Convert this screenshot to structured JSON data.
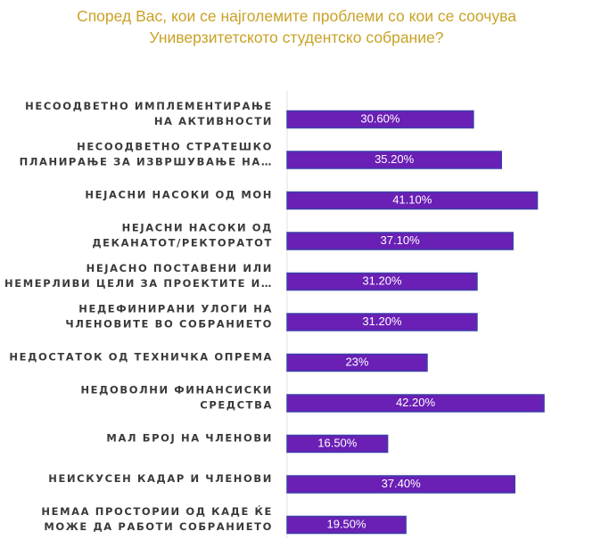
{
  "chart_data": {
    "type": "bar",
    "orientation": "horizontal",
    "title_lines": [
      "Според Вас, кои се најголемите проблеми со кои се соочува",
      "Универзитетското студентско собрание?"
    ],
    "categories": [
      [
        "НЕСООДВЕТНО ИМПЛЕМЕНТИРАЊЕ",
        "НА АКТИВНОСТИ"
      ],
      [
        "НЕСООДВЕТНО СТРАТЕШКО",
        "ПЛАНИРАЊЕ ЗА ИЗВРШУВАЊЕ НА…"
      ],
      [
        "НЕЈАСНИ НАСОКИ ОД МОН"
      ],
      [
        "НЕЈАСНИ НАСОКИ ОД",
        "ДЕКАНАТОТ/РЕКТОРАТОТ"
      ],
      [
        "НЕЈАСНО ПОСТАВЕНИ ИЛИ",
        "НЕМЕРЛИВИ ЦЕЛИ ЗА ПРОЕКТИТЕ И…"
      ],
      [
        "НЕДЕФИНИРАНИ УЛОГИ НА",
        "ЧЛЕНОВИТЕ ВО СОБРАНИЕТО"
      ],
      [
        "НЕДОСТАТОК ОД ТЕХНИЧКА ОПРЕМА"
      ],
      [
        "НЕДОВОЛНИ ФИНАНСИСКИ",
        "СРЕДСТВА"
      ],
      [
        "МАЛ БРОЈ НА ЧЛЕНОВИ"
      ],
      [
        "НЕИСКУСЕН КАДАР И ЧЛЕНОВИ"
      ],
      [
        "НЕМАА ПРОСТОРИИ ОД КАДЕ ЌЕ",
        "МОЖЕ ДА РАБОТИ СОБРАНИЕТО"
      ]
    ],
    "values": [
      30.6,
      35.2,
      41.1,
      37.1,
      31.2,
      31.2,
      23,
      42.2,
      16.5,
      37.4,
      19.5
    ],
    "value_labels": [
      "30.60%",
      "35.20%",
      "41.10%",
      "37.10%",
      "31.20%",
      "31.20%",
      "23%",
      "42.20%",
      "16.50%",
      "37.40%",
      "19.50%"
    ],
    "xlim": [
      0,
      42.2
    ],
    "bar_color": "#6A1FB5",
    "bar_edge_color": "#3B3FA8",
    "title_color": "#C9A227",
    "label_color": "#3A3A3A",
    "grid": false,
    "legend": "none"
  }
}
